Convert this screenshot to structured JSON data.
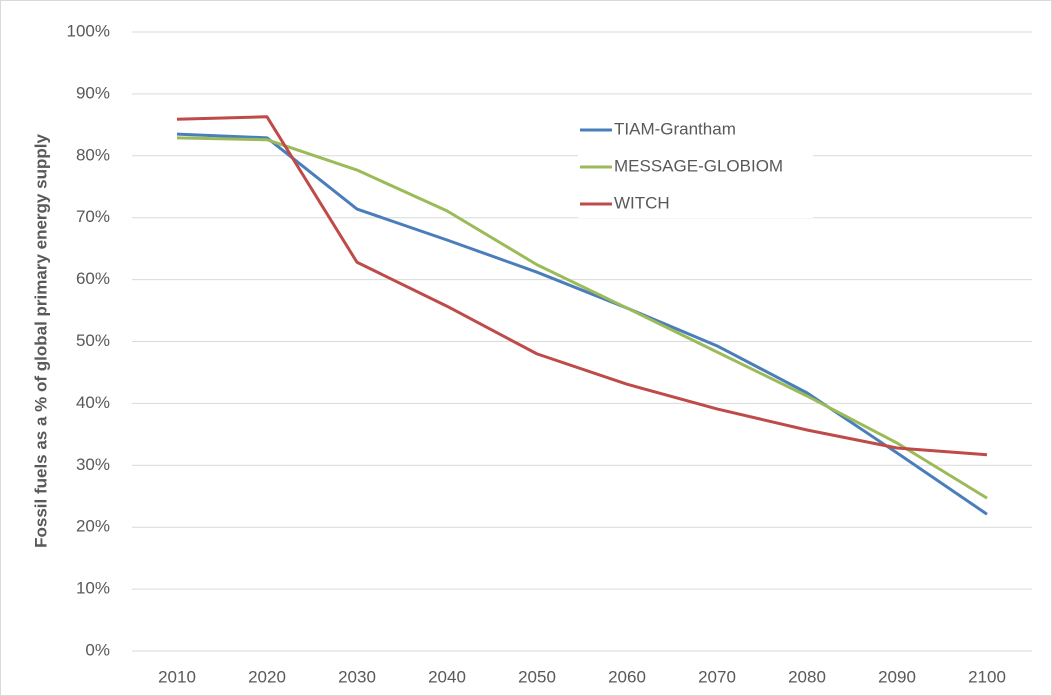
{
  "chart_data": {
    "type": "line",
    "y_label": "Fossil fuels as a % of global primary energy supply",
    "categories": [
      "2010",
      "2020",
      "2030",
      "2040",
      "2050",
      "2060",
      "2070",
      "2080",
      "2090",
      "2100"
    ],
    "series": [
      {
        "name": "TIAM-Grantham",
        "color": "#4a7ebb",
        "values": [
          83.5,
          82.9,
          71.4,
          66.4,
          61.2,
          55.4,
          49.3,
          41.7,
          32.0,
          22.1
        ]
      },
      {
        "name": "MESSAGE-GLOBIOM",
        "color": "#9bbb59",
        "values": [
          82.9,
          82.6,
          77.7,
          71.1,
          62.4,
          55.4,
          48.3,
          41.2,
          33.6,
          24.7
        ]
      },
      {
        "name": "WITCH",
        "color": "#be4b48",
        "values": [
          85.9,
          86.3,
          62.8,
          55.7,
          48.0,
          43.1,
          39.1,
          35.7,
          32.8,
          31.7
        ]
      }
    ],
    "ylim": [
      0,
      100
    ],
    "yticks": [
      {
        "value": 0,
        "label": "0%"
      },
      {
        "value": 10,
        "label": "10%"
      },
      {
        "value": 20,
        "label": "20%"
      },
      {
        "value": 30,
        "label": "30%"
      },
      {
        "value": 40,
        "label": "40%"
      },
      {
        "value": 50,
        "label": "50%"
      },
      {
        "value": 60,
        "label": "60%"
      },
      {
        "value": 70,
        "label": "70%"
      },
      {
        "value": 80,
        "label": "80%"
      },
      {
        "value": 90,
        "label": "90%"
      },
      {
        "value": 100,
        "label": "100%"
      }
    ],
    "grid": true
  }
}
